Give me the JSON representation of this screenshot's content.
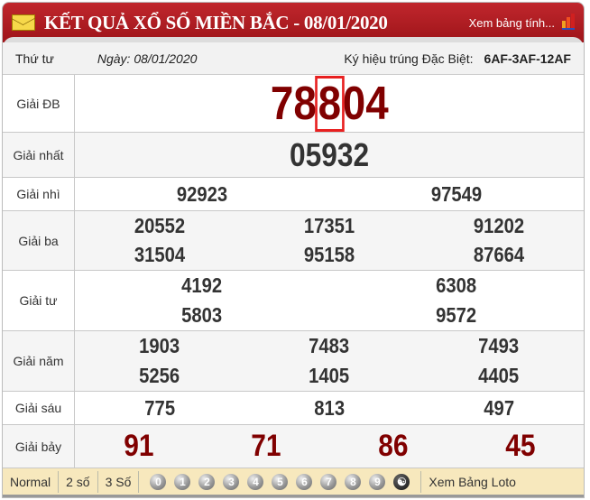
{
  "header": {
    "title": "KẾT QUẢ XỔ SỐ MIỀN BẮC - 08/01/2020",
    "link": "Xem bảng tính..."
  },
  "info": {
    "weekday": "Thứ tư",
    "date": "Ngày: 08/01/2020",
    "special_code_label": "Ký hiệu trúng Đặc Biệt:",
    "special_code": "6AF-3AF-12AF"
  },
  "prizes": [
    {
      "label": "Giải ĐB",
      "numbers": [
        "78804"
      ],
      "highlight_digit_index": 2
    },
    {
      "label": "Giải nhất",
      "numbers": [
        "05932"
      ]
    },
    {
      "label": "Giải nhì",
      "numbers": [
        "92923",
        "97549"
      ]
    },
    {
      "label": "Giải ba",
      "numbers": [
        "20552",
        "17351",
        "91202",
        "31504",
        "95158",
        "87664"
      ]
    },
    {
      "label": "Giải tư",
      "numbers": [
        "4192",
        "6308",
        "5803",
        "9572"
      ]
    },
    {
      "label": "Giải năm",
      "numbers": [
        "1903",
        "7483",
        "7493",
        "5256",
        "1405",
        "4405"
      ]
    },
    {
      "label": "Giải sáu",
      "numbers": [
        "775",
        "813",
        "497"
      ]
    },
    {
      "label": "Giải bảy",
      "numbers": [
        "91",
        "71",
        "86",
        "45"
      ]
    }
  ],
  "footer": {
    "modes": [
      "Normal",
      "2 số",
      "3 Số"
    ],
    "digits": [
      "0",
      "1",
      "2",
      "3",
      "4",
      "5",
      "6",
      "7",
      "8",
      "9"
    ],
    "yin_yang_icon": "yin-yang-icon",
    "loto_link": "Xem Bảng Loto"
  },
  "colors": {
    "header": "#b01d22",
    "highlight": "#800000",
    "box": "#e82020",
    "footer": "#f7e8bd"
  }
}
